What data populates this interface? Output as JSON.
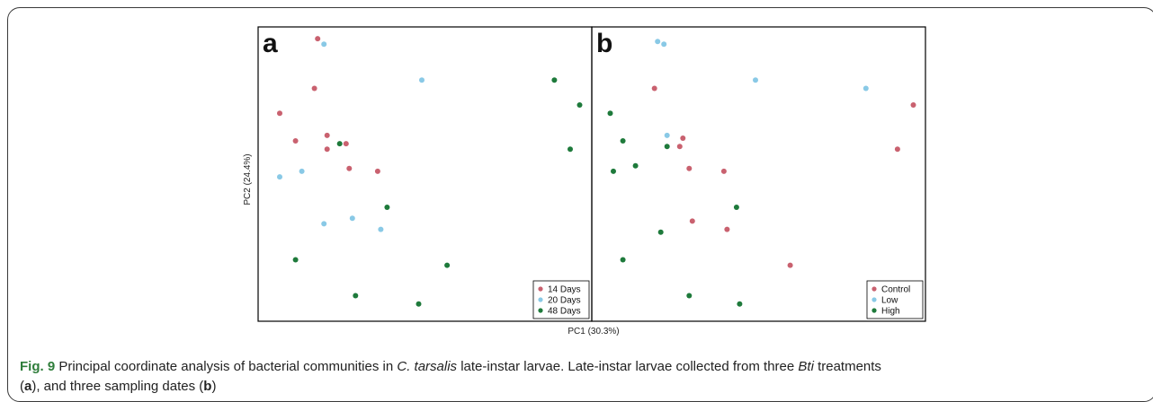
{
  "chart_data": [
    {
      "type": "scatter",
      "panel_label": "a",
      "xlabel": "PC1 (30.3%)",
      "ylabel": "PC2 (24.4%)",
      "xlim": [
        0,
        100
      ],
      "ylim": [
        0,
        100
      ],
      "grid": false,
      "legend_position": "bottom-right",
      "series": [
        {
          "name": "14 Days",
          "color": "#c9616f",
          "x": [
            16,
            15,
            4,
            9,
            19,
            25,
            19,
            26,
            35
          ],
          "y": [
            99,
            81,
            72,
            62,
            64,
            61,
            59,
            52,
            51
          ]
        },
        {
          "name": "20 Days",
          "color": "#89c9e6",
          "x": [
            18,
            49,
            11,
            4,
            27,
            18,
            36
          ],
          "y": [
            97,
            84,
            51,
            49,
            34,
            32,
            30
          ]
        },
        {
          "name": "48 Days",
          "color": "#1e7a3b",
          "x": [
            91,
            99,
            96,
            23,
            38,
            9,
            57,
            28,
            48
          ],
          "y": [
            84,
            75,
            59,
            61,
            38,
            19,
            17,
            6,
            3
          ]
        }
      ]
    },
    {
      "type": "scatter",
      "panel_label": "b",
      "xlabel": "PC1 (30.3%)",
      "ylabel": "PC2 (24.4%)",
      "xlim": [
        0,
        100
      ],
      "ylim": [
        0,
        100
      ],
      "grid": false,
      "legend_position": "bottom-right",
      "series": [
        {
          "name": "Control",
          "color": "#c9616f",
          "x": [
            17,
            99,
            94,
            26,
            25,
            28,
            39,
            29,
            40,
            60
          ],
          "y": [
            81,
            75,
            59,
            63,
            60,
            52,
            51,
            33,
            30,
            17
          ]
        },
        {
          "name": "Low",
          "color": "#89c9e6",
          "x": [
            18,
            20,
            49,
            84,
            21
          ],
          "y": [
            98,
            97,
            84,
            81,
            64
          ]
        },
        {
          "name": "High",
          "color": "#1e7a3b",
          "x": [
            3,
            7,
            21,
            11,
            4,
            43,
            19,
            7,
            28,
            44
          ],
          "y": [
            72,
            62,
            60,
            53,
            51,
            38,
            29,
            19,
            6,
            3
          ]
        }
      ]
    }
  ],
  "caption": {
    "fig_label": "Fig. 9",
    "t1": " Principal coordinate analysis of bacterial communities in ",
    "species": "C. tarsalis",
    "t2": " late-instar larvae. Late-instar larvae collected from three ",
    "bti": "Bti",
    "t3": " treatments",
    "open1": "(",
    "ref_a": "a",
    "t4": "), and three sampling dates (",
    "ref_b": "b",
    "close": ")"
  }
}
